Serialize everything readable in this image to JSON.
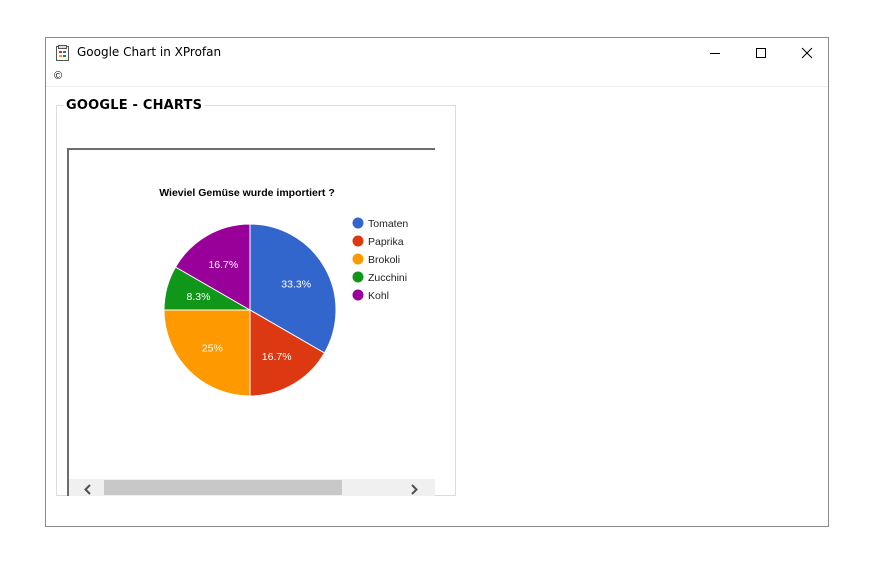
{
  "window": {
    "title": "Google Chart in XProfan"
  },
  "menubar": {
    "item": "©"
  },
  "groupbox": {
    "label": "GOOGLE - CHARTS"
  },
  "chart_data": {
    "type": "pie",
    "title": "Wieviel Gemüse wurde importiert ?",
    "categories": [
      "Tomaten",
      "Paprika",
      "Brokoli",
      "Zucchini",
      "Kohl"
    ],
    "values": [
      4,
      2,
      3,
      1,
      2
    ],
    "labels": [
      "33.3%",
      "16.7%",
      "25%",
      "8.3%",
      "16.7%"
    ],
    "colors": [
      "#3366cc",
      "#dc3912",
      "#ff9900",
      "#109618",
      "#990099"
    ],
    "legend": "right"
  }
}
